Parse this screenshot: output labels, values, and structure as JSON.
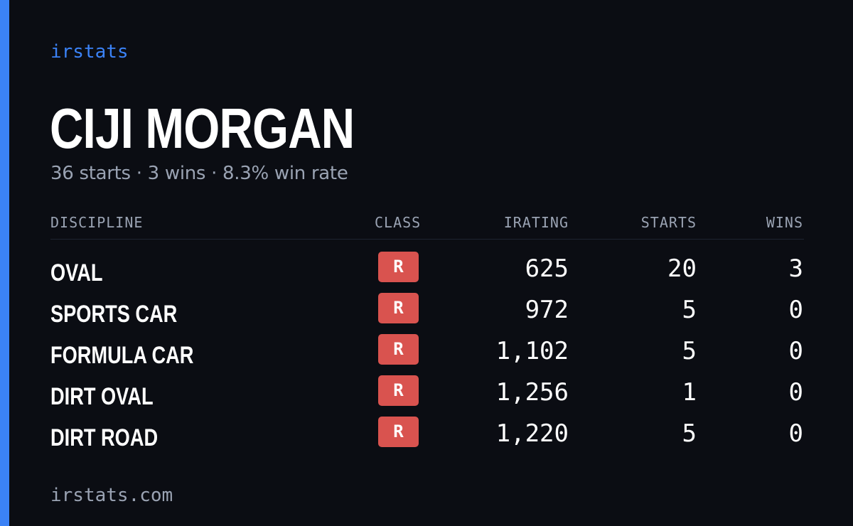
{
  "brand": "irstats",
  "driver_name": "CIJI MORGAN",
  "summary": "36 starts · 3 wins · 8.3% win rate",
  "table": {
    "headers": {
      "discipline": "DISCIPLINE",
      "class": "CLASS",
      "irating": "IRATING",
      "starts": "STARTS",
      "wins": "WINS"
    },
    "rows": [
      {
        "discipline": "OVAL",
        "class": "R",
        "irating": "625",
        "starts": "20",
        "wins": "3"
      },
      {
        "discipline": "SPORTS CAR",
        "class": "R",
        "irating": "972",
        "starts": "5",
        "wins": "0"
      },
      {
        "discipline": "FORMULA CAR",
        "class": "R",
        "irating": "1,102",
        "starts": "5",
        "wins": "0"
      },
      {
        "discipline": "DIRT OVAL",
        "class": "R",
        "irating": "1,256",
        "starts": "1",
        "wins": "0"
      },
      {
        "discipline": "DIRT ROAD",
        "class": "R",
        "irating": "1,220",
        "starts": "5",
        "wins": "0"
      }
    ]
  },
  "footer": "irstats.com",
  "colors": {
    "accent": "#3b82f6",
    "background": "#0b0d13",
    "class_badge": "#d9534f",
    "muted_text": "#9aa3b3"
  }
}
